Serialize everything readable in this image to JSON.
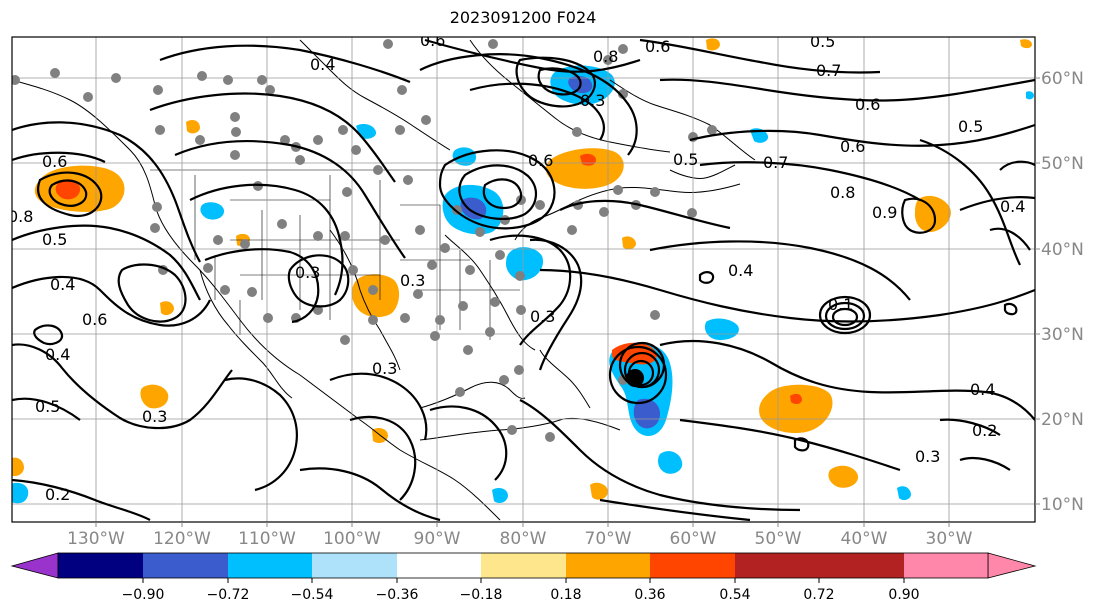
{
  "title": "2023091200 F024",
  "lon_labels": [
    "130°W",
    "120°W",
    "110°W",
    "100°W",
    "90°W",
    "80°W",
    "70°W",
    "60°W",
    "50°W",
    "40°W",
    "30°W"
  ],
  "lat_labels": [
    "60°N",
    "50°N",
    "40°N",
    "30°N",
    "20°N",
    "10°N"
  ],
  "colorbar": {
    "colors": [
      "#9a33cc",
      "#000080",
      "#3a5ccc",
      "#00bfff",
      "#aee2fa",
      "#ffffff",
      "#fde68c",
      "#ffa500",
      "#ff4500",
      "#b22222",
      "#ff88aa"
    ],
    "tick_labels": [
      "−0.90",
      "−0.72",
      "−0.54",
      "−0.36",
      "−0.18",
      "0.18",
      "0.36",
      "0.54",
      "0.72",
      "0.90"
    ]
  },
  "contour_labels": [
    "0.6",
    "0.4",
    "0.8",
    "0.5",
    "0.4",
    "0.6",
    "0.4",
    "0.5",
    "0.3",
    "0.2",
    "0.3",
    "0.3",
    "0.3",
    "0.6",
    "0.8",
    "0.3",
    "0.6",
    "0.5",
    "0.6",
    "0.7",
    "0.5",
    "0.7",
    "0.6",
    "0.8",
    "0.9",
    "0.4",
    "0.4",
    "0.5",
    "0.4",
    "0.2",
    "0.3",
    "0.1",
    "0.6",
    "0.3"
  ]
}
